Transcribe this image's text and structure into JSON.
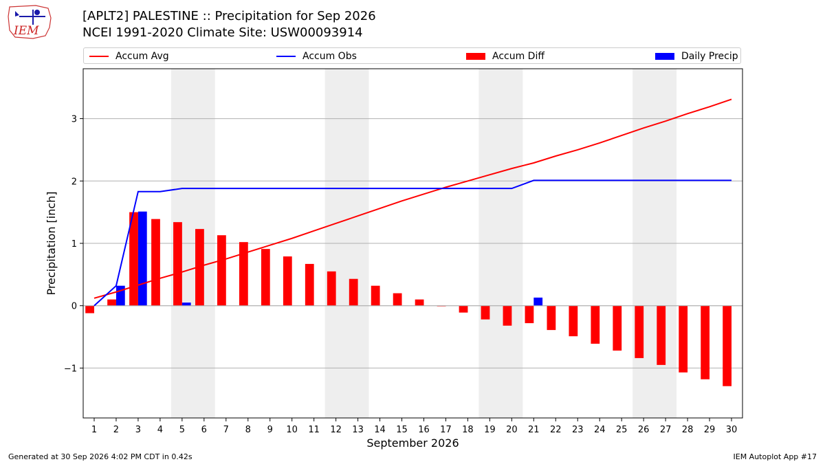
{
  "header": {
    "title": "[APLT2] PALESTINE :: Precipitation for Sep 2026",
    "subtitle": "NCEI 1991-2020 Climate Site: USW00093914"
  },
  "logo": {
    "text": "IEM",
    "icon": "iem-logo-icon"
  },
  "legend": {
    "accum_avg": "Accum Avg",
    "accum_obs": "Accum Obs",
    "accum_diff": "Accum Diff",
    "daily_precip": "Daily Precip"
  },
  "colors": {
    "avg": "#ff0000",
    "obs": "#0000ff",
    "diff": "#ff0000",
    "daily": "#0000ff",
    "weekend": "#eeeeee"
  },
  "chart_data": {
    "type": "bar",
    "xlabel": "September 2026",
    "ylabel": "Precipitation [inch]",
    "x": [
      1,
      2,
      3,
      4,
      5,
      6,
      7,
      8,
      9,
      10,
      11,
      12,
      13,
      14,
      15,
      16,
      17,
      18,
      19,
      20,
      21,
      22,
      23,
      24,
      25,
      26,
      27,
      28,
      29,
      30
    ],
    "xlim": [
      0.5,
      30.5
    ],
    "ylim": [
      -1.8,
      3.8
    ],
    "yticks": [
      -1,
      0,
      1,
      2,
      3
    ],
    "ytick_labels": [
      "−1",
      "0",
      "1",
      "2",
      "3"
    ],
    "grid": "y",
    "legend_position": "top",
    "shaded_days": [
      5,
      6,
      12,
      13,
      19,
      20,
      26,
      27
    ],
    "series": [
      {
        "name": "Accum Avg",
        "kind": "line",
        "values": [
          0.12,
          0.22,
          0.33,
          0.44,
          0.54,
          0.65,
          0.75,
          0.86,
          0.97,
          1.08,
          1.2,
          1.32,
          1.44,
          1.56,
          1.68,
          1.79,
          1.9,
          2.0,
          2.1,
          2.2,
          2.29,
          2.4,
          2.5,
          2.61,
          2.73,
          2.85,
          2.96,
          3.08,
          3.19,
          3.31
        ]
      },
      {
        "name": "Accum Obs",
        "kind": "line",
        "values": [
          0.0,
          0.32,
          1.83,
          1.83,
          1.88,
          1.88,
          1.88,
          1.88,
          1.88,
          1.88,
          1.88,
          1.88,
          1.88,
          1.88,
          1.88,
          1.88,
          1.88,
          1.88,
          1.88,
          1.88,
          2.01,
          2.01,
          2.01,
          2.01,
          2.01,
          2.01,
          2.01,
          2.01,
          2.01,
          2.01
        ]
      },
      {
        "name": "Accum Diff",
        "kind": "bar",
        "values": [
          -0.12,
          0.1,
          1.5,
          1.39,
          1.34,
          1.23,
          1.13,
          1.02,
          0.91,
          0.79,
          0.67,
          0.55,
          0.43,
          0.32,
          0.2,
          0.1,
          -0.01,
          -0.11,
          -0.22,
          -0.32,
          -0.28,
          -0.39,
          -0.49,
          -0.61,
          -0.72,
          -0.84,
          -0.95,
          -1.07,
          -1.18,
          -1.29
        ]
      },
      {
        "name": "Daily Precip",
        "kind": "bar",
        "values": [
          0.0,
          0.32,
          1.51,
          0.0,
          0.05,
          0.0,
          0.0,
          0.0,
          0.0,
          0.0,
          0.0,
          0.0,
          0.0,
          0.0,
          0.0,
          0.0,
          0.0,
          0.0,
          0.0,
          0.0,
          0.13,
          0.0,
          0.0,
          0.0,
          0.0,
          0.0,
          0.0,
          0.0,
          0.0,
          0.0
        ]
      }
    ]
  },
  "footer": {
    "generated": "Generated at 30 Sep 2026 4:02 PM CDT in 0.42s",
    "app": "IEM Autoplot App #17"
  }
}
